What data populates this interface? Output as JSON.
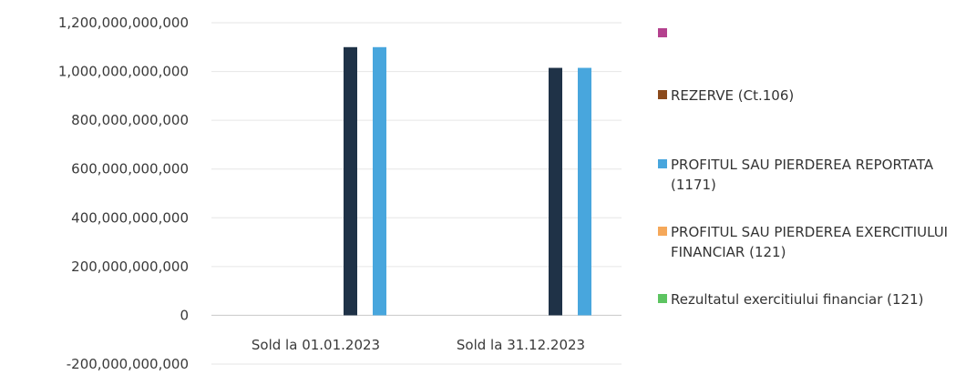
{
  "chart_data": {
    "type": "bar",
    "categories": [
      "Sold la 01.01.2023",
      "Sold la 31.12.2023"
    ],
    "y_ticks": [
      "1,200,000,000,000",
      "1,000,000,000,000",
      "800,000,000,000",
      "600,000,000,000",
      "400,000,000,000",
      "200,000,000,000",
      "0",
      "-200,000,000,000"
    ],
    "ylim": [
      -200000000000,
      1200000000000
    ],
    "grid": true,
    "legend_position": "right",
    "series": [
      {
        "name": "",
        "color": "#b4418e",
        "values": [
          0,
          0
        ]
      },
      {
        "name": "REZERVE (Ct.106)",
        "color": "#8b4a1c",
        "values": [
          0,
          0
        ]
      },
      {
        "name": "",
        "color": "#1f3247",
        "values": [
          1100000000000,
          1015000000000
        ]
      },
      {
        "name": "PROFITUL SAU PIERDEREA REPORTATA (1171)",
        "color": "#48a6dd",
        "values": [
          1100000000000,
          1015000000000
        ]
      },
      {
        "name": "PROFITUL SAU PIERDEREA EXERCITIULUI FINANCIAR (121)",
        "color": "#f5a85a",
        "values": [
          0,
          0
        ]
      },
      {
        "name": "Rezultatul exercitiului financiar (121)",
        "color": "#5dc461",
        "values": [
          0,
          0
        ]
      }
    ],
    "legend": [
      {
        "label": "",
        "color": "#b4418e"
      },
      {
        "label": "REZERVE (Ct.106)",
        "color": "#8b4a1c"
      },
      {
        "label": "PROFITUL SAU PIERDEREA REPORTATA (1171)",
        "color": "#48a6dd"
      },
      {
        "label": "PROFITUL SAU PIERDEREA EXERCITIULUI FINANCIAR (121)",
        "color": "#f5a85a"
      },
      {
        "label": "Rezultatul exercitiului financiar (121)",
        "color": "#5dc461"
      }
    ]
  }
}
